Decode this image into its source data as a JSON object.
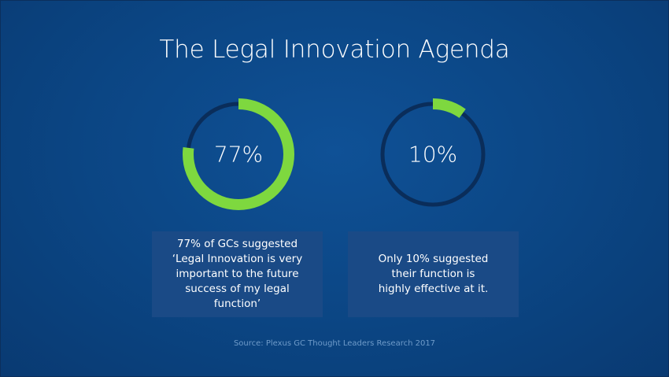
{
  "slide": {
    "title": "The Legal Innovation Agenda",
    "source": "Source: Plexus GC Thought Leaders Research 2017"
  },
  "colors": {
    "background": "#0b4583",
    "ring_track": "#0a2d5a",
    "ring_fill": "#7ed83f",
    "box": "#1a4a86"
  },
  "chart_data": [
    {
      "type": "pie",
      "style": "donut",
      "value": 77,
      "max": 100,
      "label": "77%",
      "caption": "77% of GCs suggested ‘Legal Innovation is very important to the future success of my legal function’"
    },
    {
      "type": "pie",
      "style": "donut",
      "value": 10,
      "max": 100,
      "label": "10%",
      "caption": "Only 10% suggested their function is highly effective at it."
    }
  ]
}
